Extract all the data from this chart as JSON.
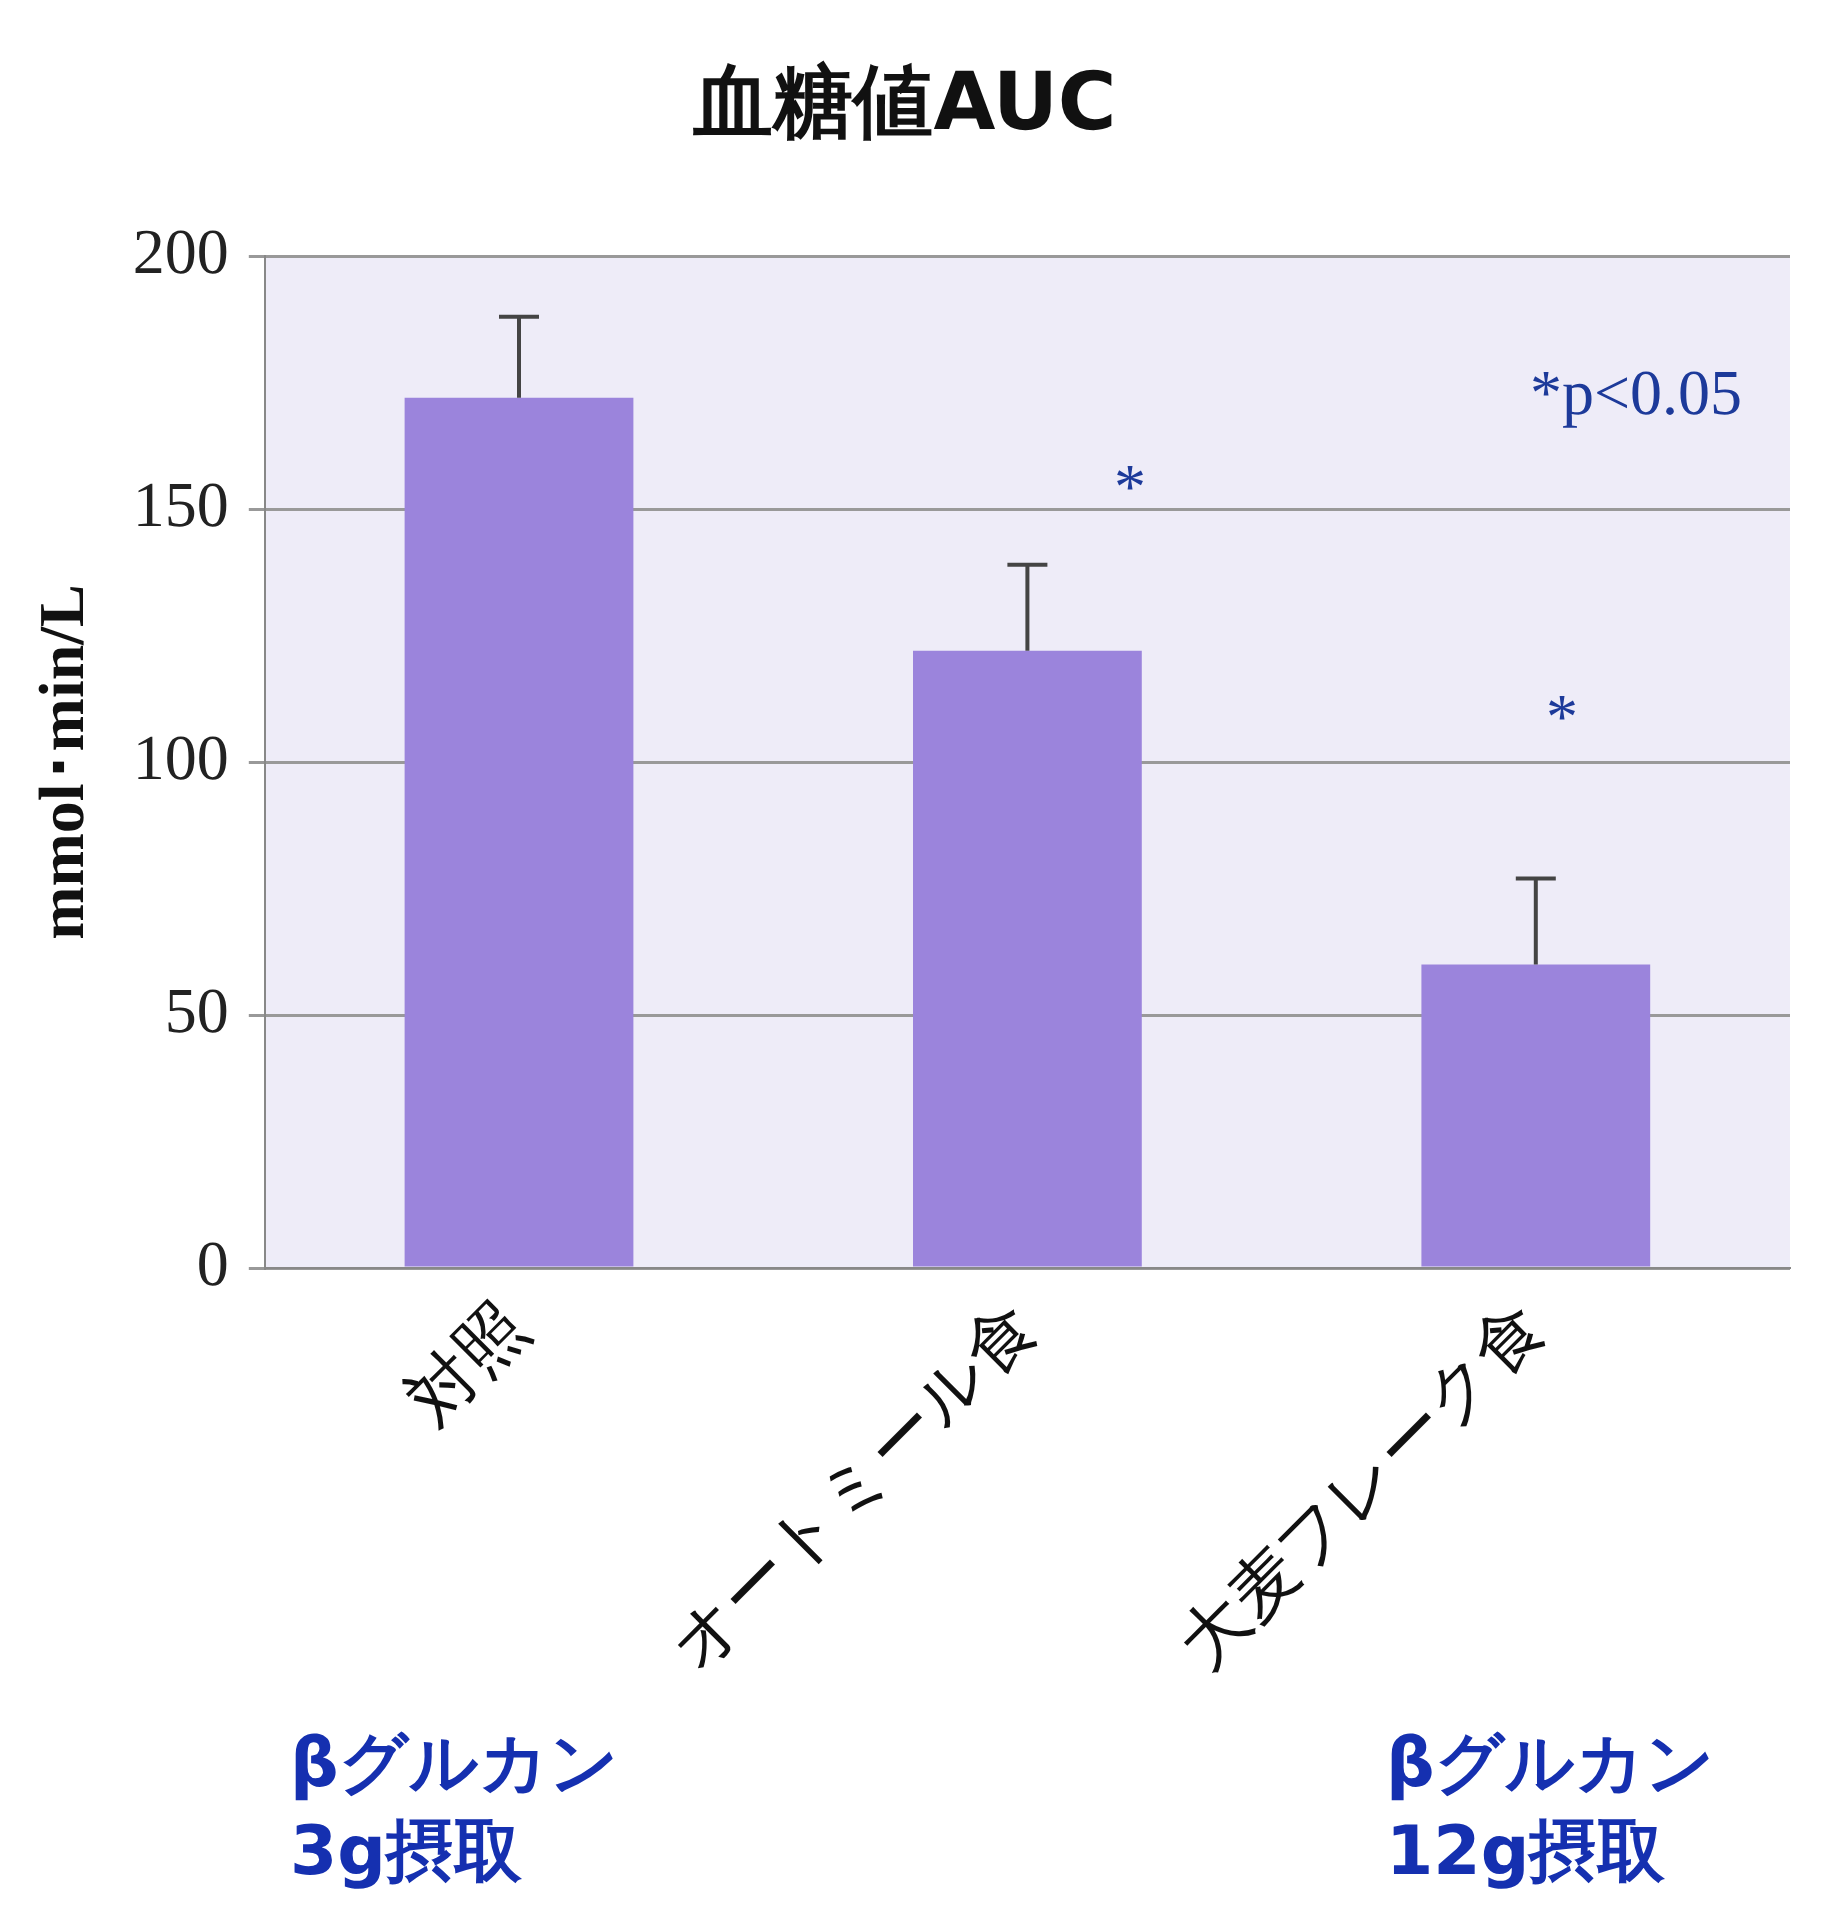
{
  "chart_data": {
    "type": "bar",
    "title": "血糖値AUC",
    "ylabel": "mmol･min/L",
    "categories": [
      "対照",
      "オートミール食",
      "大麦フレーク食"
    ],
    "values": [
      172,
      122,
      60
    ],
    "errors": [
      [
        172,
        188
      ],
      [
        122,
        139
      ],
      [
        60,
        77
      ]
    ],
    "color": "#9b84dc",
    "ylim": [
      0,
      200
    ],
    "yticks": [
      0,
      50,
      100,
      150,
      200
    ],
    "grid": "y",
    "annotations": [
      "*p<0.05",
      "*",
      "*",
      "βグルカン\n3g摂取",
      "βグルカン\n12g摂取"
    ]
  }
}
